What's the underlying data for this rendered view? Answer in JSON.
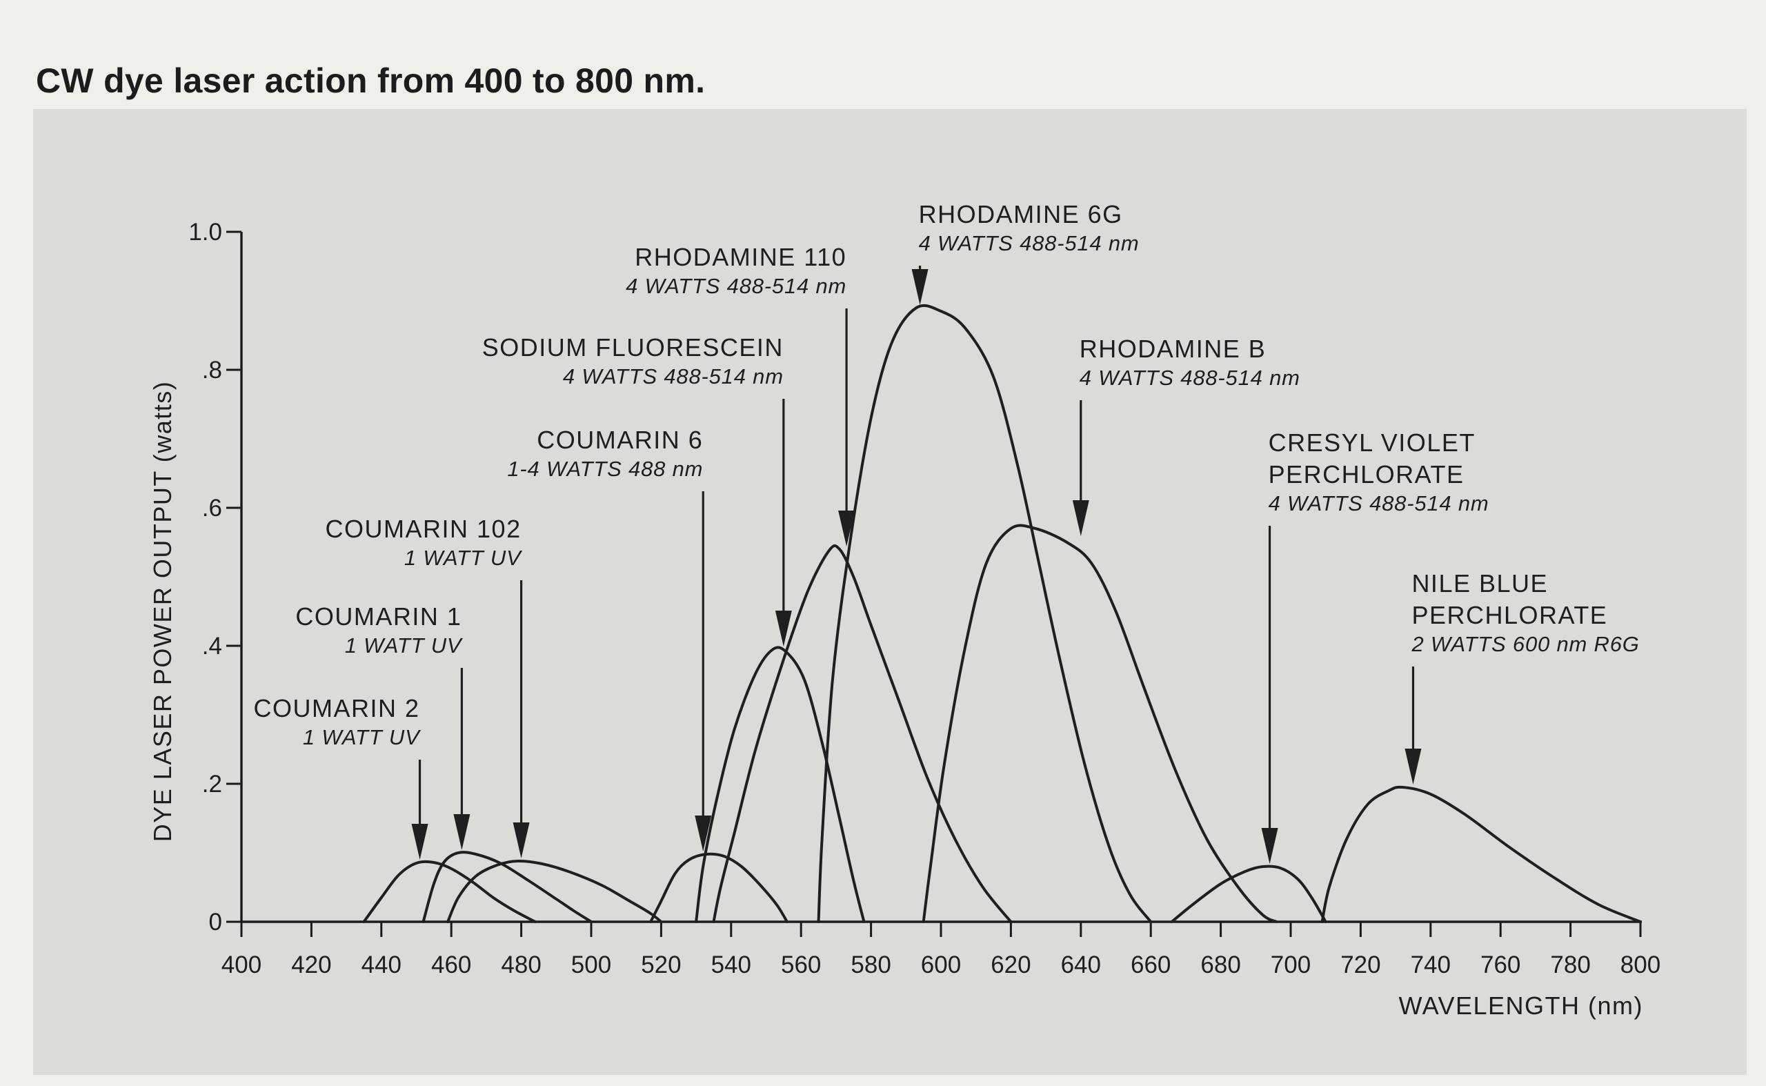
{
  "title": "CW dye laser action from 400 to 800 nm.",
  "chart_data": {
    "type": "line",
    "title": "CW dye laser action from 400 to 800 nm.",
    "xlabel": "WAVELENGTH (nm)",
    "ylabel": "DYE LASER POWER OUTPUT (watts)",
    "xlim": [
      400,
      800
    ],
    "ylim": [
      0,
      1.0
    ],
    "x_ticks": [
      400,
      420,
      440,
      460,
      480,
      500,
      520,
      540,
      560,
      580,
      600,
      620,
      640,
      660,
      680,
      700,
      720,
      740,
      760,
      780,
      800
    ],
    "x_tick_labels": [
      "400",
      "420",
      "440",
      "460",
      "480",
      "500",
      "520",
      "540",
      "560",
      "580",
      "600",
      "620",
      "640",
      "660",
      "680",
      "700",
      "720",
      "740",
      "760",
      "780",
      "800"
    ],
    "y_ticks": [
      0,
      0.2,
      0.4,
      0.6,
      0.8,
      1.0
    ],
    "y_tick_labels": [
      "0",
      ".2",
      ".4",
      ".6",
      ".8",
      "1.0"
    ],
    "series": [
      {
        "name": "COUMARIN 2",
        "pump": "1 WATT UV",
        "points": [
          [
            435,
            0
          ],
          [
            440,
            0.035
          ],
          [
            445,
            0.068
          ],
          [
            450,
            0.085
          ],
          [
            455,
            0.086
          ],
          [
            460,
            0.077
          ],
          [
            466,
            0.058
          ],
          [
            472,
            0.035
          ],
          [
            478,
            0.016
          ],
          [
            484,
            0
          ]
        ]
      },
      {
        "name": "COUMARIN 1",
        "pump": "1 WATT UV",
        "points": [
          [
            452,
            0
          ],
          [
            455,
            0.055
          ],
          [
            458,
            0.087
          ],
          [
            462,
            0.1
          ],
          [
            467,
            0.098
          ],
          [
            474,
            0.085
          ],
          [
            482,
            0.06
          ],
          [
            490,
            0.033
          ],
          [
            495,
            0.016
          ],
          [
            500,
            0
          ]
        ]
      },
      {
        "name": "COUMARIN 102",
        "pump": "1 WATT UV",
        "points": [
          [
            459,
            0
          ],
          [
            462,
            0.035
          ],
          [
            467,
            0.066
          ],
          [
            473,
            0.082
          ],
          [
            479,
            0.088
          ],
          [
            486,
            0.084
          ],
          [
            494,
            0.072
          ],
          [
            503,
            0.053
          ],
          [
            511,
            0.03
          ],
          [
            517,
            0.012
          ],
          [
            520,
            0
          ]
        ]
      },
      {
        "name": "COUMARIN 6",
        "pump": "1-4 WATTS  488 nm",
        "points": [
          [
            517,
            0
          ],
          [
            520,
            0.03
          ],
          [
            524,
            0.07
          ],
          [
            528,
            0.09
          ],
          [
            533,
            0.098
          ],
          [
            538,
            0.095
          ],
          [
            543,
            0.08
          ],
          [
            548,
            0.055
          ],
          [
            553,
            0.025
          ],
          [
            556,
            0
          ]
        ]
      },
      {
        "name": "SODIUM FLUORESCEIN",
        "pump": "4 WATTS  488-514 nm",
        "points": [
          [
            530,
            0
          ],
          [
            532,
            0.08
          ],
          [
            536,
            0.18
          ],
          [
            541,
            0.28
          ],
          [
            547,
            0.36
          ],
          [
            552,
            0.395
          ],
          [
            556,
            0.39
          ],
          [
            561,
            0.35
          ],
          [
            566,
            0.26
          ],
          [
            571,
            0.15
          ],
          [
            575,
            0.06
          ],
          [
            578,
            0
          ]
        ]
      },
      {
        "name": "RHODAMINE 110",
        "pump": "4 WATTS  488-514 nm",
        "points": [
          [
            535,
            0
          ],
          [
            537,
            0.05
          ],
          [
            541,
            0.13
          ],
          [
            547,
            0.25
          ],
          [
            555,
            0.38
          ],
          [
            562,
            0.48
          ],
          [
            568,
            0.538
          ],
          [
            571,
            0.54
          ],
          [
            575,
            0.5
          ],
          [
            580,
            0.43
          ],
          [
            588,
            0.32
          ],
          [
            596,
            0.21
          ],
          [
            604,
            0.12
          ],
          [
            612,
            0.05
          ],
          [
            620,
            0
          ]
        ]
      },
      {
        "name": "RHODAMINE 6G",
        "pump": "4 WATTS  488-514 nm",
        "points": [
          [
            565,
            0
          ],
          [
            566,
            0.12
          ],
          [
            569,
            0.35
          ],
          [
            574,
            0.55
          ],
          [
            580,
            0.73
          ],
          [
            586,
            0.84
          ],
          [
            593,
            0.89
          ],
          [
            600,
            0.885
          ],
          [
            607,
            0.86
          ],
          [
            615,
            0.79
          ],
          [
            622,
            0.66
          ],
          [
            628,
            0.52
          ],
          [
            634,
            0.38
          ],
          [
            641,
            0.23
          ],
          [
            648,
            0.11
          ],
          [
            654,
            0.04
          ],
          [
            660,
            0
          ]
        ]
      },
      {
        "name": "RHODAMINE B",
        "pump": "4 WATTS  488-514 nm",
        "points": [
          [
            595,
            0
          ],
          [
            597,
            0.08
          ],
          [
            601,
            0.23
          ],
          [
            607,
            0.4
          ],
          [
            613,
            0.52
          ],
          [
            620,
            0.57
          ],
          [
            627,
            0.57
          ],
          [
            636,
            0.55
          ],
          [
            643,
            0.52
          ],
          [
            650,
            0.45
          ],
          [
            658,
            0.34
          ],
          [
            667,
            0.22
          ],
          [
            676,
            0.12
          ],
          [
            685,
            0.05
          ],
          [
            692,
            0.01
          ],
          [
            696,
            0
          ]
        ]
      },
      {
        "name": "CRESYL VIOLET PERCHLORATE",
        "pump": "4 WATTS  488-514 nm",
        "points": [
          [
            666,
            0
          ],
          [
            672,
            0.025
          ],
          [
            680,
            0.055
          ],
          [
            687,
            0.073
          ],
          [
            692,
            0.08
          ],
          [
            697,
            0.078
          ],
          [
            702,
            0.062
          ],
          [
            706,
            0.035
          ],
          [
            710,
            0
          ]
        ]
      },
      {
        "name": "NILE BLUE PERCHLORATE",
        "pump": "2 WATTS  600 nm R6G",
        "points": [
          [
            709,
            0
          ],
          [
            711,
            0.05
          ],
          [
            716,
            0.12
          ],
          [
            722,
            0.17
          ],
          [
            728,
            0.19
          ],
          [
            732,
            0.195
          ],
          [
            740,
            0.185
          ],
          [
            750,
            0.155
          ],
          [
            762,
            0.11
          ],
          [
            775,
            0.065
          ],
          [
            788,
            0.025
          ],
          [
            800,
            0
          ]
        ]
      }
    ]
  },
  "annotations": [
    {
      "name_lines": [
        "COUMARIN 2"
      ],
      "pump": "1 WATT UV",
      "arrow_x": 451,
      "arrow_y": 0.086,
      "label_top": 0.333
    },
    {
      "name_lines": [
        "COUMARIN 1"
      ],
      "pump": "1 WATT UV",
      "arrow_x": 463,
      "arrow_y": 0.1,
      "label_top": 0.466
    },
    {
      "name_lines": [
        "COUMARIN 102"
      ],
      "pump": "1 WATT UV",
      "arrow_x": 480,
      "arrow_y": 0.088,
      "label_top": 0.593
    },
    {
      "name_lines": [
        "COUMARIN 6"
      ],
      "pump": "1-4 WATTS  488 nm",
      "arrow_x": 532,
      "arrow_y": 0.098,
      "label_top": 0.722
    },
    {
      "name_lines": [
        "SODIUM FLUORESCEIN"
      ],
      "pump": "4 WATTS  488-514 nm",
      "arrow_x": 555,
      "arrow_y": 0.395,
      "label_top": 0.856
    },
    {
      "name_lines": [
        "RHODAMINE 110"
      ],
      "pump": "4 WATTS  488-514 nm",
      "arrow_x": 573,
      "arrow_y": 0.54,
      "label_top": 0.987
    },
    {
      "name_lines": [
        "RHODAMINE 6G"
      ],
      "pump": "4 WATTS  488-514 nm",
      "arrow_x": 594,
      "arrow_y": 0.89,
      "label_top": 1.049
    },
    {
      "name_lines": [
        "RHODAMINE B"
      ],
      "pump": "4 WATTS  488-514 nm",
      "arrow_x": 640,
      "arrow_y": 0.555,
      "label_top": 0.854
    },
    {
      "name_lines": [
        "CRESYL VIOLET",
        "PERCHLORATE"
      ],
      "pump": "4 WATTS  488-514 nm",
      "arrow_x": 694,
      "arrow_y": 0.08,
      "label_top": 0.718
    },
    {
      "name_lines": [
        "NILE BLUE",
        "PERCHLORATE"
      ],
      "pump": "2 WATTS  600 nm R6G",
      "arrow_x": 735,
      "arrow_y": 0.195,
      "label_top": 0.514
    }
  ]
}
